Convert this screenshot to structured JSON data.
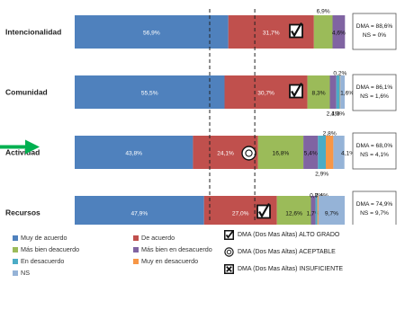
{
  "chart_data": {
    "type": "bar",
    "orientation": "horizontal",
    "stacked": true,
    "categories": [
      "Intencionalidad",
      "Comunidad",
      "Actividad",
      "Recursos"
    ],
    "series": [
      {
        "name": "Muy de acuerdo",
        "color": "#4f81bd",
        "values": [
          56.9,
          55.5,
          43.8,
          47.9
        ],
        "labels": [
          "56,9%",
          "55,5%",
          "43,8%",
          "47,9%"
        ]
      },
      {
        "name": "De acuerdo",
        "color": "#c0504d",
        "values": [
          31.7,
          30.7,
          24.1,
          27.0
        ],
        "labels": [
          "31,7%",
          "30,7%",
          "24,1%",
          "27,0%"
        ]
      },
      {
        "name": "Más bien deacuerdo",
        "color": "#9bbb59",
        "values": [
          6.9,
          8.3,
          16.8,
          12.6
        ],
        "labels": [
          "6,9%",
          "8,3%",
          "16,8%",
          "12,6%"
        ]
      },
      {
        "name": "Más bien en desacuerdo",
        "color": "#8064a2",
        "values": [
          4.6,
          2.4,
          5.4,
          1.7
        ],
        "labels": [
          "4,6%",
          "2,4%",
          "5,4%",
          "1,7%"
        ]
      },
      {
        "name": "En desacuerdo",
        "color": "#4bacc6",
        "values": [
          0,
          1.3,
          2.9,
          0.7
        ],
        "labels": [
          "",
          "1,3%",
          "2,9%",
          "0,7%"
        ]
      },
      {
        "name": "Muy en desacuerdo",
        "color": "#f79646",
        "values": [
          0,
          0.2,
          2.8,
          0.4
        ],
        "labels": [
          "",
          "0,2%",
          "2,8%",
          "0,4%"
        ]
      },
      {
        "name": "NS",
        "color": "#95b3d7",
        "values": [
          0,
          1.6,
          4.1,
          9.7
        ],
        "labels": [
          "",
          "1,6%",
          "4,1%",
          "9,7%"
        ]
      }
    ],
    "xlim": [
      0,
      100
    ],
    "reference_lines": [
      50,
      66.7
    ],
    "kpi_boxes": [
      {
        "dma": "DMA = 88,6%",
        "ns": "NS = 0%"
      },
      {
        "dma": "DMA = 86,1%",
        "ns": "NS = 1,6%"
      },
      {
        "dma": "DMA = 68,0%",
        "ns": "NS = 4,1%"
      },
      {
        "dma": "DMA = 74,9%",
        "ns": "NS = 9,7%"
      }
    ],
    "symbols": [
      "check",
      "check",
      "circle",
      "check"
    ],
    "highlighted_category": "Actividad",
    "title": "",
    "xlabel": "",
    "ylabel": ""
  },
  "symbol_legend": [
    {
      "icon": "check",
      "text": "DMA (Dos Mas Altas) ALTO GRADO"
    },
    {
      "icon": "circle",
      "text": "DMA (Dos Mas Altas) ACEPTABLE"
    },
    {
      "icon": "cross",
      "text": "DMA (Dos Mas Altas) INSUFICIENTE"
    }
  ]
}
